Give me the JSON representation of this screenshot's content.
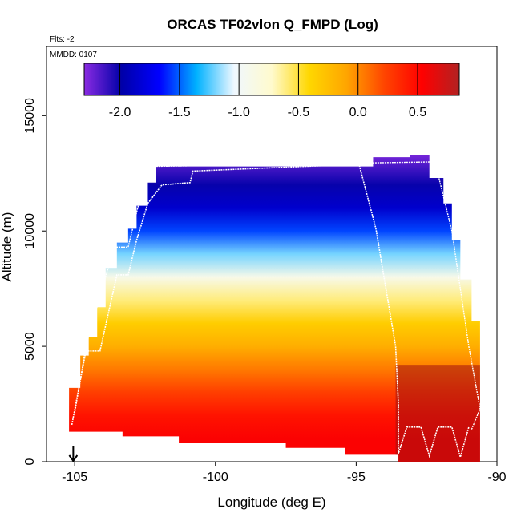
{
  "chart_data": {
    "type": "heatmap",
    "title": "ORCAS TF02vlon Q_FMPD (Log)",
    "subtitle_flts": "Flts: -2",
    "subtitle_mmdd": "MMDD: 0107",
    "xlabel": "Longitude (deg E)",
    "ylabel": "Altitude (m)",
    "xlim": [
      -106,
      -90
    ],
    "ylim": [
      0,
      18000
    ],
    "xticks": [
      "-105",
      "-100",
      "-95",
      "-90"
    ],
    "yticks": [
      "0",
      "5000",
      "10000",
      "15000"
    ],
    "colorbar": {
      "range": [
        -2.3,
        0.85
      ],
      "ticks": [
        "-2.0",
        "-1.5",
        "-1.0",
        "-0.5",
        "0.0",
        "0.5"
      ],
      "colors": [
        "#8a2be2",
        "#0000a8",
        "#0000ff",
        "#00b2ff",
        "#f0f8ff",
        "#fffacd",
        "#ffd700",
        "#ffa500",
        "#ff4500",
        "#ff0000",
        "#b22222"
      ]
    },
    "profile_log_q": [
      {
        "alt": 1000,
        "value": 0.55
      },
      {
        "alt": 2000,
        "value": 0.45
      },
      {
        "alt": 3000,
        "value": 0.25
      },
      {
        "alt": 4000,
        "value": 0.05
      },
      {
        "alt": 5000,
        "value": -0.15
      },
      {
        "alt": 6000,
        "value": -0.35
      },
      {
        "alt": 7000,
        "value": -0.6
      },
      {
        "alt": 8000,
        "value": -0.9
      },
      {
        "alt": 9000,
        "value": -1.2
      },
      {
        "alt": 10000,
        "value": -1.55
      },
      {
        "alt": 11000,
        "value": -1.85
      },
      {
        "alt": 12000,
        "value": -2.0
      },
      {
        "alt": 12800,
        "value": -2.15
      }
    ],
    "flight_track": [
      {
        "lon": -105.1,
        "alt": 1600
      },
      {
        "lon": -104.6,
        "alt": 4800
      },
      {
        "lon": -104.1,
        "alt": 4800
      },
      {
        "lon": -103.5,
        "alt": 8100
      },
      {
        "lon": -103.1,
        "alt": 8100
      },
      {
        "lon": -102.8,
        "alt": 9600
      },
      {
        "lon": -102.4,
        "alt": 11200
      },
      {
        "lon": -101.9,
        "alt": 12000
      },
      {
        "lon": -100.9,
        "alt": 12100
      },
      {
        "lon": -100.8,
        "alt": 12600
      },
      {
        "lon": -94.9,
        "alt": 12900
      },
      {
        "lon": -94.3,
        "alt": 10100
      },
      {
        "lon": -93.6,
        "alt": 5000
      },
      {
        "lon": -93.5,
        "alt": 2500
      },
      {
        "lon": -93.5,
        "alt": 350
      },
      {
        "lon": -93.2,
        "alt": 1500
      },
      {
        "lon": -92.7,
        "alt": 1500
      },
      {
        "lon": -92.4,
        "alt": 250
      },
      {
        "lon": -92.1,
        "alt": 1500
      },
      {
        "lon": -91.6,
        "alt": 1500
      },
      {
        "lon": -91.3,
        "alt": 200
      },
      {
        "lon": -91.0,
        "alt": 1500
      }
    ],
    "flight_track_outer": [
      {
        "lon": -105.0,
        "alt": 2100
      },
      {
        "lon": -104.6,
        "alt": 5000
      },
      {
        "lon": -103.6,
        "alt": 9300
      },
      {
        "lon": -103.1,
        "alt": 9300
      },
      {
        "lon": -102.4,
        "alt": 12800
      },
      {
        "lon": -92.2,
        "alt": 13000
      },
      {
        "lon": -91.6,
        "alt": 10000
      },
      {
        "lon": -91.0,
        "alt": 5000
      },
      {
        "lon": -90.6,
        "alt": 2300
      },
      {
        "lon": -90.9,
        "alt": 1400
      }
    ],
    "envelope": [
      {
        "lon": -105.2,
        "top": 3200
      },
      {
        "lon": -104.8,
        "top": 4600
      },
      {
        "lon": -104.5,
        "top": 5400
      },
      {
        "lon": -104.2,
        "top": 6700
      },
      {
        "lon": -103.9,
        "top": 8400
      },
      {
        "lon": -103.5,
        "top": 9500
      },
      {
        "lon": -103.1,
        "top": 10100
      },
      {
        "lon": -102.8,
        "top": 11100
      },
      {
        "lon": -102.4,
        "top": 12100
      },
      {
        "lon": -102.1,
        "top": 12800
      },
      {
        "lon": -94.4,
        "top": 13200
      },
      {
        "lon": -93.1,
        "top": 13300
      },
      {
        "lon": -92.4,
        "top": 12300
      },
      {
        "lon": -91.9,
        "top": 11200
      },
      {
        "lon": -91.6,
        "top": 9600
      },
      {
        "lon": -91.3,
        "top": 7900
      },
      {
        "lon": -90.9,
        "top": 6100
      },
      {
        "lon": -90.6,
        "top": 3500
      }
    ],
    "envelope_bottom": [
      {
        "lon": -105.2,
        "bottom": 1300
      },
      {
        "lon": -103.3,
        "bottom": 1100
      },
      {
        "lon": -101.3,
        "bottom": 800
      },
      {
        "lon": -97.5,
        "bottom": 600
      },
      {
        "lon": -95.4,
        "bottom": 300
      },
      {
        "lon": -93.5,
        "bottom": 0
      },
      {
        "lon": -90.9,
        "bottom": 0
      }
    ],
    "marker": {
      "lon": -105.05,
      "symbol": "↓"
    }
  }
}
